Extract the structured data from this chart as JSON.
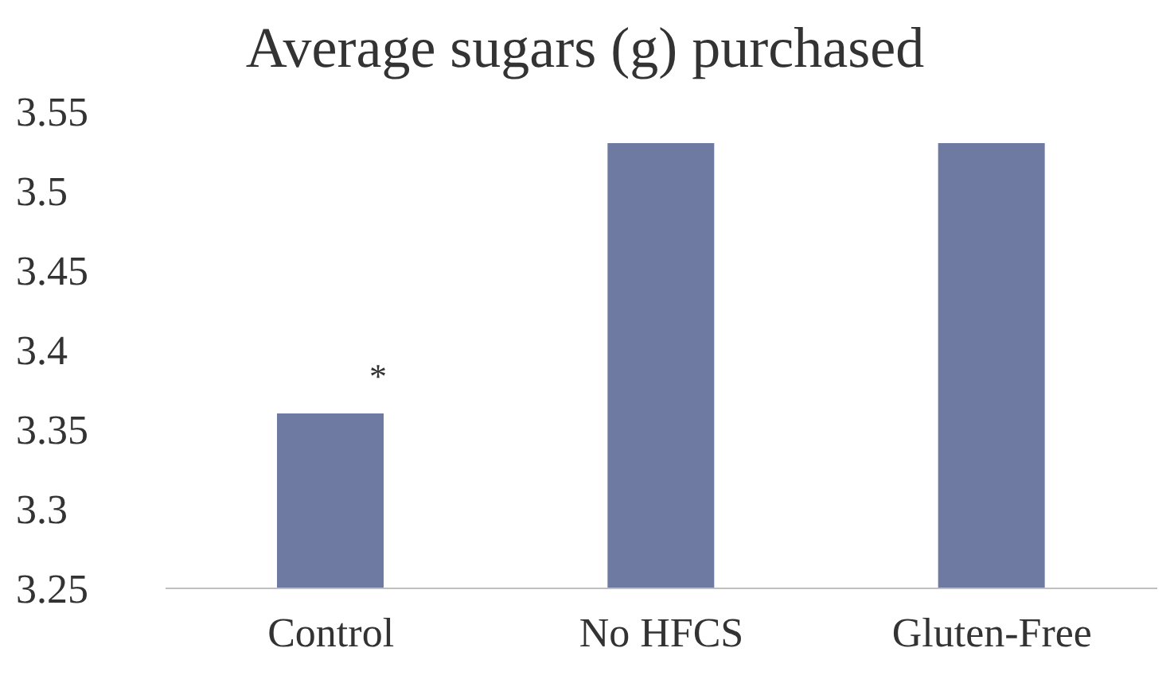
{
  "chart_data": {
    "type": "bar",
    "title": "Average sugars (g) purchased",
    "categories": [
      "Control",
      "No HFCS",
      "Gluten-Free"
    ],
    "values": [
      3.36,
      3.53,
      3.53
    ],
    "color": "#6f7aa3",
    "ylim": [
      3.25,
      3.55
    ],
    "yticks": [
      3.25,
      3.3,
      3.35,
      3.4,
      3.45,
      3.5,
      3.55
    ],
    "grid": false,
    "annotations": [
      "*"
    ]
  }
}
